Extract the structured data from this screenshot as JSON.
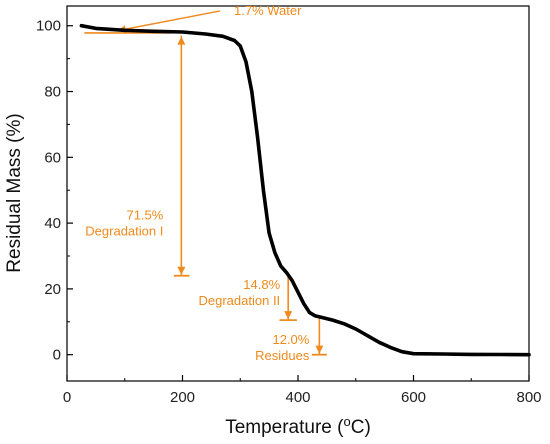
{
  "chart_data": {
    "type": "line",
    "title": "",
    "xlabel": "Temperature",
    "xlabel_unit_prefix": " (",
    "xlabel_unit_sup": "o",
    "xlabel_unit_suffix": "C)",
    "ylabel": "Residual Mass (%)",
    "xlim": [
      0,
      800
    ],
    "ylim": [
      -8,
      106
    ],
    "x_ticks": [
      0,
      200,
      400,
      600,
      800
    ],
    "y_ticks": [
      0,
      20,
      40,
      60,
      80,
      100
    ],
    "x_tick_labels": [
      "0",
      "200",
      "400",
      "600",
      "800"
    ],
    "y_tick_labels": [
      "0",
      "20",
      "40",
      "60",
      "80",
      "100"
    ],
    "grid": false,
    "series": [
      {
        "color": "#000000",
        "x": [
          25,
          50,
          100,
          150,
          200,
          240,
          270,
          290,
          300,
          310,
          320,
          330,
          340,
          350,
          360,
          370,
          380,
          390,
          400,
          410,
          420,
          430,
          440,
          460,
          480,
          500,
          520,
          540,
          560,
          580,
          600,
          650,
          700,
          750,
          800
        ],
        "y": [
          100,
          99.2,
          98.6,
          98.3,
          98.1,
          97.5,
          96.8,
          95.5,
          93.8,
          89,
          80,
          66,
          50,
          37,
          31,
          27,
          25,
          22.5,
          19,
          15.5,
          12.8,
          11.8,
          11.4,
          10.5,
          9.4,
          7.8,
          5.8,
          3.8,
          2.2,
          0.9,
          0.3,
          0.2,
          0.1,
          0.05,
          0
        ]
      }
    ],
    "annotation_color": "#f08a1c",
    "annotations": [
      {
        "id": "water",
        "label_lines": [
          "1.7% Water"
        ],
        "arrow_from": [
          265,
          104.5
        ],
        "arrow_to": [
          88,
          98.5
        ],
        "baseline_x": [
          30,
          180
        ],
        "baseline_y": 97.8
      },
      {
        "id": "deg1",
        "label_lines": [
          "71.5%",
          "Degradation I"
        ],
        "arrow_x": 198,
        "arrow_y": [
          97,
          24
        ],
        "bar_y": 24,
        "bar_x": [
          185,
          212
        ]
      },
      {
        "id": "deg2",
        "label_lines": [
          "14.8%",
          "Degradation II"
        ],
        "arrow_x": 383,
        "arrow_y": [
          25,
          10.5
        ],
        "bar_y": 10.5,
        "bar_x": [
          368,
          398
        ]
      },
      {
        "id": "res",
        "label_lines": [
          "12.0%",
          "Residues"
        ],
        "arrow_x": 437,
        "arrow_y": [
          11,
          0
        ],
        "bar_y": 0,
        "bar_x": [
          424,
          450
        ]
      }
    ]
  }
}
